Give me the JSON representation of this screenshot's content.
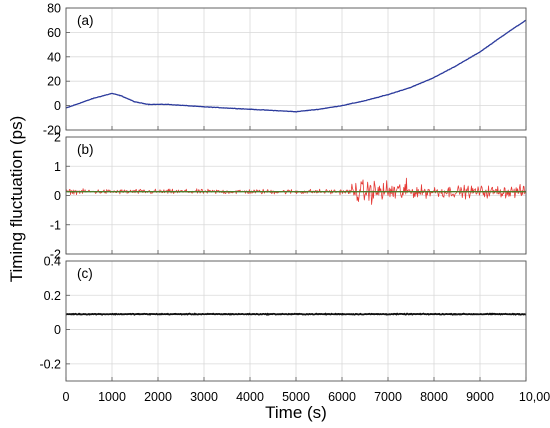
{
  "chart_data": {
    "type": "line",
    "xlabel": "Time (s)",
    "ylabel": "Timing fluctuation (ps)",
    "xlim": [
      0,
      10000
    ],
    "xticks": [
      0,
      1000,
      2000,
      3000,
      4000,
      5000,
      6000,
      7000,
      8000,
      9000,
      10000
    ],
    "xtick_labels": [
      "0",
      "1000",
      "2000",
      "3000",
      "4000",
      "5000",
      "6000",
      "7000",
      "8000",
      "9000",
      "10,000"
    ],
    "grid": true,
    "panels": [
      {
        "label": "(a)",
        "ylim": [
          -20,
          80
        ],
        "yticks": [
          -20,
          0,
          20,
          40,
          60,
          80
        ],
        "ytick_labels": [
          "-20",
          "0",
          "20",
          "40",
          "60",
          "80"
        ],
        "series": [
          {
            "color": "#2b3a9c",
            "noise": 0.3,
            "x": [
              0,
              300,
              600,
              1000,
              1200,
              1500,
              1800,
              2200,
              2600,
              3000,
              3500,
              4000,
              4500,
              5000,
              5500,
              6000,
              6500,
              7000,
              7500,
              8000,
              8500,
              9000,
              9300,
              9600,
              10000
            ],
            "y": [
              -2,
              2,
              6,
              10,
              8,
              3,
              1,
              1,
              0,
              -1,
              -2,
              -3,
              -4,
              -5,
              -3,
              0,
              4,
              9,
              15,
              23,
              33,
              44,
              52,
              60,
              70
            ]
          }
        ]
      },
      {
        "label": "(b)",
        "ylim": [
          -2,
          2
        ],
        "yticks": [
          -2,
          -1,
          0,
          1,
          2
        ],
        "ytick_labels": [
          "-2",
          "-1",
          "0",
          "1",
          "2"
        ],
        "series": [
          {
            "color": "#e53935",
            "x": [
              0,
              6200,
              6200,
              7500,
              7500,
              10000
            ],
            "y": [
              0.13,
              0.13,
              0.13,
              0.13,
              0.13,
              0.13
            ],
            "noise_amplitude": [
              0.12,
              0.12,
              0.55,
              0.55,
              0.3,
              0.3
            ]
          },
          {
            "color": "#4a7d2a",
            "x": [
              0,
              10000
            ],
            "y": [
              0.13,
              0.13
            ]
          }
        ]
      },
      {
        "label": "(c)",
        "ylim": [
          -0.3,
          0.4
        ],
        "yticks": [
          -0.2,
          0,
          0.2,
          0.4
        ],
        "ytick_labels": [
          "-0.2",
          "0",
          "0.2",
          "0.4"
        ],
        "series": [
          {
            "color": "#111111",
            "noise": 0.004,
            "x": [
              0,
              10000
            ],
            "y": [
              0.09,
              0.09
            ]
          }
        ]
      }
    ]
  }
}
